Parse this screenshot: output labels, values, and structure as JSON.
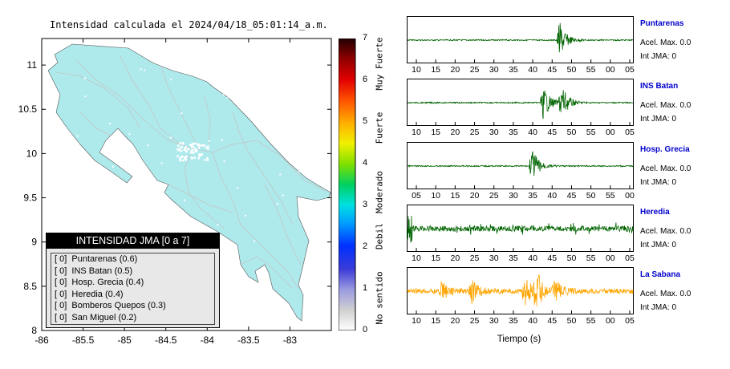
{
  "map": {
    "title": "Intensidad calculada el 2024/04/18_05:01:14_a.m.",
    "land_color": "#aeeaec",
    "x_ticks": [
      "-86",
      "-85.5",
      "-85",
      "-84.5",
      "-84",
      "-83.5",
      "-83"
    ],
    "y_ticks": [
      "11",
      "10.5",
      "10",
      "9.5",
      "9",
      "8.5",
      "8"
    ],
    "xlim": [
      -86,
      -82.5
    ],
    "ylim": [
      8,
      11.3
    ]
  },
  "legend": {
    "header": "INTENSIDAD JMA [0 a 7]",
    "items": [
      "[ 0]  Puntarenas (0.6)",
      "[ 0]  INS Batan (0.5)",
      "[ 0]  Hosp. Grecia (0.4)",
      "[ 0]  Heredia (0.4)",
      "[ 0]  Bomberos Quepos (0.3)",
      "[ 0]  San Miguel (0.2)"
    ]
  },
  "colorbar": {
    "labels": [
      "7",
      "6",
      "5",
      "4",
      "3",
      "2",
      "1",
      "0"
    ],
    "categories": [
      "Muy Fuerte",
      "Fuerte",
      "Moderado",
      "Debil",
      "No sentido"
    ]
  },
  "seismograms": {
    "x_axis_title": "Tiempo (s)",
    "stations": [
      {
        "name": "Puntarenas",
        "accel": "Acel. Max. 0.0",
        "jma": "Int JMA: 0",
        "color": "#006400",
        "ticks": [
          "10",
          "15",
          "20",
          "25",
          "30",
          "35",
          "40",
          "45",
          "50",
          "55",
          "00",
          "05"
        ]
      },
      {
        "name": "INS Batan",
        "accel": "Acel. Max. 0.0",
        "jma": "Int JMA: 0",
        "color": "#006400",
        "ticks": [
          "10",
          "15",
          "20",
          "25",
          "30",
          "35",
          "40",
          "45",
          "50",
          "55",
          "00",
          "05"
        ]
      },
      {
        "name": "Hosp. Grecia",
        "accel": "Acel. Max. 0.0",
        "jma": "Int JMA: 0",
        "color": "#006400",
        "ticks": [
          "05",
          "10",
          "15",
          "20",
          "25",
          "30",
          "35",
          "40",
          "45",
          "50",
          "55",
          "00"
        ]
      },
      {
        "name": "Heredia",
        "accel": "Acel. Max. 0.0",
        "jma": "Int JMA: 0",
        "color": "#006400",
        "ticks": [
          "10",
          "15",
          "20",
          "25",
          "30",
          "35",
          "40",
          "45",
          "50",
          "55",
          "00",
          "05"
        ]
      },
      {
        "name": "La Sabana",
        "accel": "Acel. Max. 0.0",
        "jma": "Int JMA: 0",
        "color": "#ffa500",
        "ticks": [
          "10",
          "15",
          "20",
          "25",
          "30",
          "35",
          "40",
          "45",
          "50",
          "55",
          "00",
          "05"
        ]
      }
    ]
  }
}
